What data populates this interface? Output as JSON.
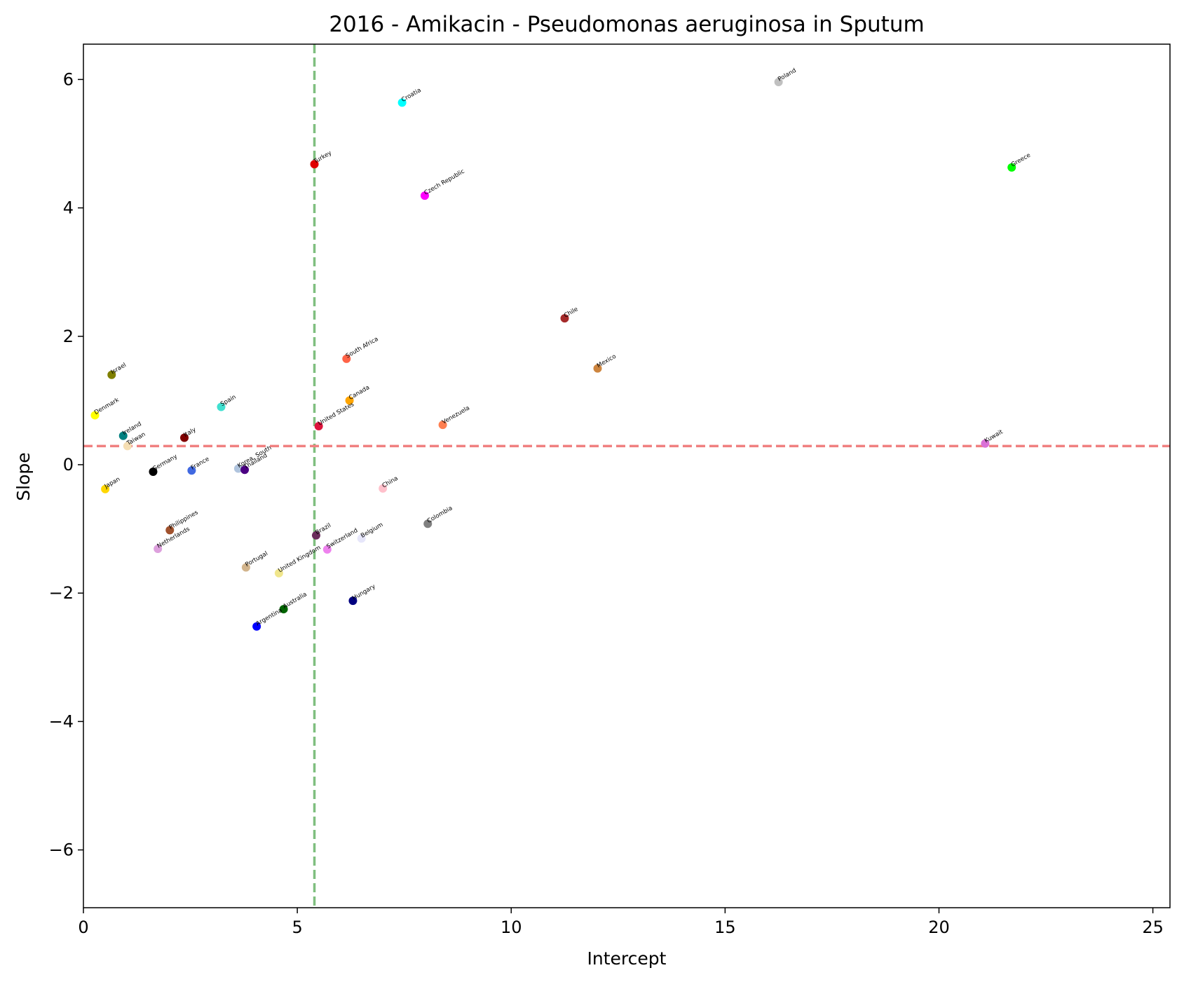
{
  "chart_data": {
    "type": "scatter",
    "title": "2016 - Amikacin - Pseudomonas aeruginosa in Sputum",
    "xlabel": "Intercept",
    "ylabel": "Slope",
    "xlim": [
      0,
      25.4
    ],
    "ylim": [
      -6.9,
      6.55
    ],
    "xticks": [
      0,
      5,
      10,
      15,
      20,
      25
    ],
    "yticks": [
      -6,
      -4,
      -2,
      0,
      2,
      4,
      6
    ],
    "ytick_labels": [
      "−6",
      "−4",
      "−2",
      "0",
      "2",
      "4",
      "6"
    ],
    "xtick_labels": [
      "0",
      "5",
      "10",
      "15",
      "20",
      "25"
    ],
    "grid": false,
    "reference_lines": {
      "vertical": {
        "x": 5.4,
        "color": "#7fbf7f",
        "style": "dashed"
      },
      "horizontal": {
        "y": 0.29,
        "color": "#f08080",
        "style": "dashed"
      }
    },
    "points": [
      {
        "label": "Poland",
        "x": 16.25,
        "y": 5.96,
        "color": "#c0c0c0"
      },
      {
        "label": "Croatia",
        "x": 7.45,
        "y": 5.64,
        "color": "#00ffff"
      },
      {
        "label": "Turkey",
        "x": 5.4,
        "y": 4.68,
        "color": "#e00000"
      },
      {
        "label": "Greece",
        "x": 21.7,
        "y": 4.63,
        "color": "#00ff00"
      },
      {
        "label": "Czech Republic",
        "x": 7.98,
        "y": 4.19,
        "color": "#ff00ff"
      },
      {
        "label": "Chile",
        "x": 11.25,
        "y": 2.28,
        "color": "#a52a2a"
      },
      {
        "label": "South Africa",
        "x": 6.15,
        "y": 1.65,
        "color": "#ff6347"
      },
      {
        "label": "Mexico",
        "x": 12.02,
        "y": 1.5,
        "color": "#cd853f"
      },
      {
        "label": "Israel",
        "x": 0.66,
        "y": 1.4,
        "color": "#808000"
      },
      {
        "label": "Canada",
        "x": 6.22,
        "y": 1.0,
        "color": "#ffa500"
      },
      {
        "label": "Spain",
        "x": 3.22,
        "y": 0.9,
        "color": "#40e0d0"
      },
      {
        "label": "Denmark",
        "x": 0.27,
        "y": 0.77,
        "color": "#ffff00"
      },
      {
        "label": "United States",
        "x": 5.5,
        "y": 0.6,
        "color": "#dc143c"
      },
      {
        "label": "Venezuela",
        "x": 8.4,
        "y": 0.62,
        "color": "#ff7f50"
      },
      {
        "label": "Ireland",
        "x": 0.93,
        "y": 0.45,
        "color": "#008080"
      },
      {
        "label": "Italy",
        "x": 2.36,
        "y": 0.42,
        "color": "#800000"
      },
      {
        "label": "Kuwait",
        "x": 21.08,
        "y": 0.33,
        "color": "#da70d6"
      },
      {
        "label": "Taiwan",
        "x": 1.03,
        "y": 0.29,
        "color": "#f5deb3"
      },
      {
        "label": "Korea, South",
        "x": 3.62,
        "y": -0.06,
        "color": "#b0c4de"
      },
      {
        "label": "Thailand",
        "x": 3.77,
        "y": -0.08,
        "color": "#4b0082"
      },
      {
        "label": "France",
        "x": 2.53,
        "y": -0.09,
        "color": "#4169e1"
      },
      {
        "label": "Germany",
        "x": 1.63,
        "y": -0.11,
        "color": "#000000"
      },
      {
        "label": "China",
        "x": 7.0,
        "y": -0.37,
        "color": "#ffc0cb"
      },
      {
        "label": "Japan",
        "x": 0.51,
        "y": -0.38,
        "color": "#ffd700"
      },
      {
        "label": "Colombia",
        "x": 8.05,
        "y": -0.92,
        "color": "#808080"
      },
      {
        "label": "Philippines",
        "x": 2.02,
        "y": -1.02,
        "color": "#a0522d"
      },
      {
        "label": "Brazil",
        "x": 5.44,
        "y": -1.1,
        "color": "#6b2d5c"
      },
      {
        "label": "Belgium",
        "x": 6.5,
        "y": -1.15,
        "color": "#e6e6fa"
      },
      {
        "label": "Netherlands",
        "x": 1.74,
        "y": -1.31,
        "color": "#dda0dd"
      },
      {
        "label": "Switzerland",
        "x": 5.7,
        "y": -1.32,
        "color": "#ee82ee"
      },
      {
        "label": "Portugal",
        "x": 3.8,
        "y": -1.6,
        "color": "#d2b48c"
      },
      {
        "label": "United Kingdom",
        "x": 4.57,
        "y": -1.69,
        "color": "#f0e68c"
      },
      {
        "label": "Hungary",
        "x": 6.3,
        "y": -2.12,
        "color": "#000080"
      },
      {
        "label": "Australia",
        "x": 4.68,
        "y": -2.25,
        "color": "#006400"
      },
      {
        "label": "Argentina",
        "x": 4.05,
        "y": -2.52,
        "color": "#0000ff"
      }
    ]
  }
}
